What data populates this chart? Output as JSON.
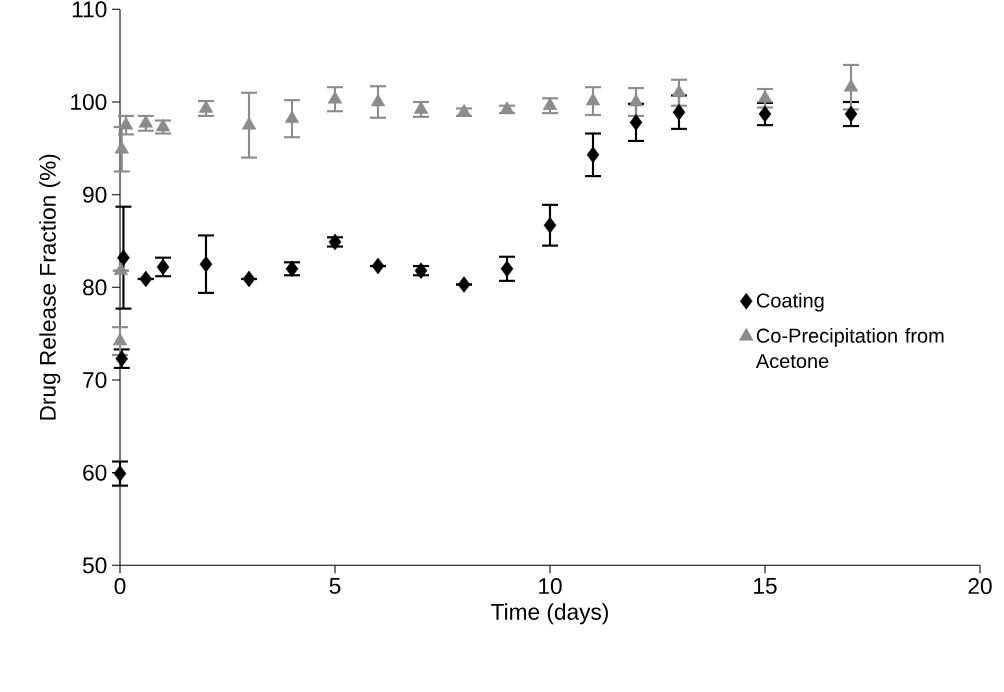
{
  "chart_data": {
    "type": "scatter",
    "xlabel": "Time (days)",
    "ylabel": "Drug Release Fraction (%)",
    "xlim": [
      0,
      20
    ],
    "xticks": [
      0,
      5,
      10,
      15,
      20
    ],
    "ylim": [
      50,
      110
    ],
    "yticks": [
      50,
      60,
      70,
      80,
      90,
      100,
      110
    ],
    "grid": false,
    "legend": "right",
    "series": [
      {
        "name": "Coating",
        "color": "#000000",
        "marker": "diamond",
        "x": [
          0,
          0.04,
          0.08,
          0.6,
          1,
          2,
          3,
          4,
          5,
          6,
          7,
          8,
          9,
          10,
          11,
          12,
          13,
          15,
          17
        ],
        "values": [
          59.9,
          72.3,
          83.2,
          80.9,
          82.2,
          82.5,
          80.9,
          82,
          84.9,
          82.3,
          81.8,
          80.3,
          82,
          86.7,
          94.3,
          97.8,
          98.9,
          98.7,
          98.7
        ],
        "errors": [
          1.3,
          1,
          5.5,
          null,
          1,
          3.1,
          null,
          0.7,
          0.5,
          null,
          0.5,
          null,
          1.3,
          2.2,
          2.3,
          2,
          1.8,
          1.2,
          1.3
        ]
      },
      {
        "name": "Co-Precipitation from Acetone",
        "color": "#8c8c8c",
        "marker": "triangle",
        "x": [
          0,
          0.02,
          0.04,
          0.14,
          0.6,
          1,
          2,
          3,
          4,
          5,
          6,
          7,
          8,
          9,
          10,
          11,
          12,
          13,
          15,
          17
        ],
        "values": [
          74.2,
          81.8,
          94.9,
          97.5,
          97.7,
          97.3,
          99.3,
          97.5,
          98.2,
          100.3,
          100,
          99.2,
          98.9,
          99.2,
          99.6,
          100.1,
          100,
          101,
          100.4,
          101.6
        ],
        "errors": [
          1.5,
          null,
          2.4,
          1,
          0.8,
          0.7,
          0.8,
          3.5,
          2,
          1.3,
          1.7,
          0.8,
          0.4,
          0.4,
          0.8,
          1.5,
          1.5,
          1.4,
          1,
          2.4
        ]
      }
    ]
  }
}
